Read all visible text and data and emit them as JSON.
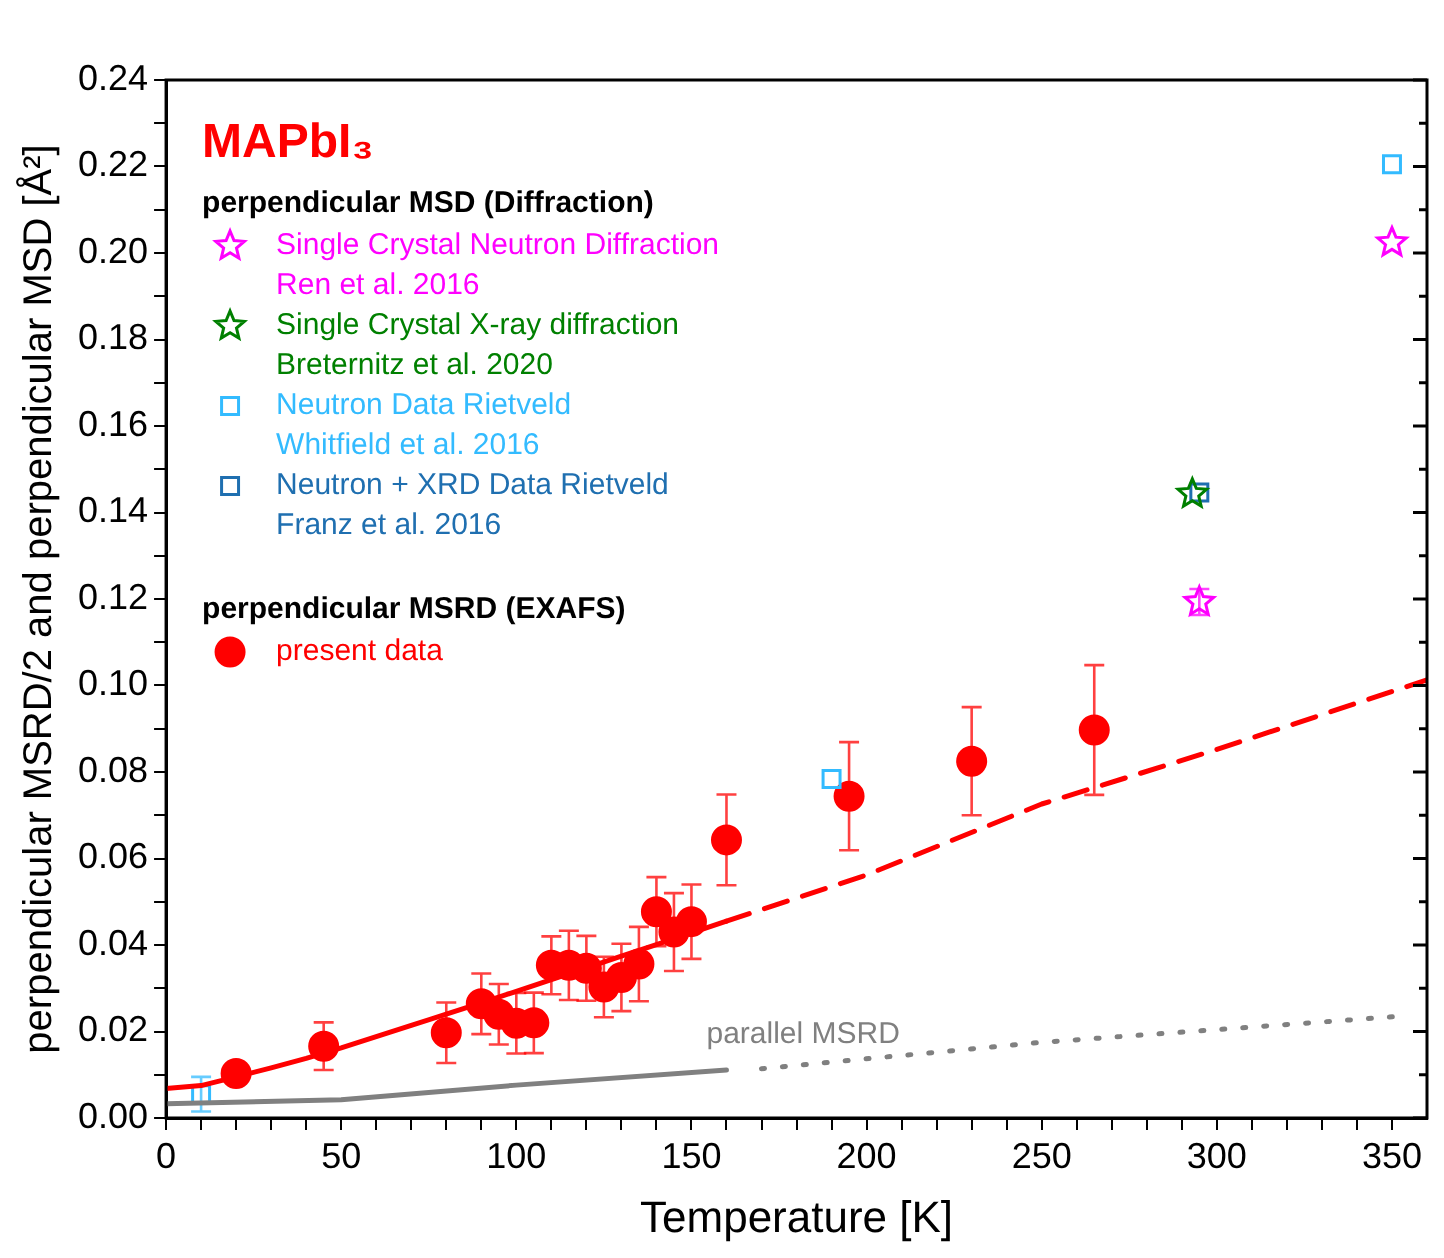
{
  "chart_data": {
    "type": "scatter",
    "title": "MAPbI₃",
    "xlabel": "Temperature [K]",
    "ylabel": "perpendicular MSRD/2 and perpendicular MSD [Å²]",
    "xlim": [
      0,
      360
    ],
    "ylim": [
      0,
      0.24
    ],
    "xticks": [
      0,
      {
        "value": 10,
        "label": null
      },
      {
        "value": 20,
        "label": null
      },
      {
        "value": 30,
        "label": null
      },
      {
        "value": 40,
        "label": null
      },
      50,
      {
        "value": 60,
        "label": null
      },
      {
        "value": 70,
        "label": null
      },
      {
        "value": 80,
        "label": null
      },
      {
        "value": 90,
        "label": null
      },
      100,
      {
        "value": 110,
        "label": null
      },
      {
        "value": 120,
        "label": null
      },
      {
        "value": 130,
        "label": null
      },
      {
        "value": 140,
        "label": null
      },
      150,
      {
        "value": 160,
        "label": null
      },
      {
        "value": 170,
        "label": null
      },
      {
        "value": 180,
        "label": null
      },
      {
        "value": 190,
        "label": null
      },
      200,
      {
        "value": 210,
        "label": null
      },
      {
        "value": 220,
        "label": null
      },
      {
        "value": 230,
        "label": null
      },
      {
        "value": 240,
        "label": null
      },
      250,
      {
        "value": 260,
        "label": null
      },
      {
        "value": 270,
        "label": null
      },
      {
        "value": 280,
        "label": null
      },
      {
        "value": 290,
        "label": null
      },
      300,
      {
        "value": 310,
        "label": null
      },
      {
        "value": 320,
        "label": null
      },
      {
        "value": 330,
        "label": null
      },
      {
        "value": 340,
        "label": null
      },
      350
    ],
    "yticks": [
      {
        "value": 0,
        "label": "0.00"
      },
      {
        "value": 0.01,
        "label": null
      },
      {
        "value": 0.02,
        "label": "0.02"
      },
      {
        "value": 0.03,
        "label": null
      },
      {
        "value": 0.04,
        "label": "0.04"
      },
      {
        "value": 0.05,
        "label": null
      },
      {
        "value": 0.06,
        "label": "0.06"
      },
      {
        "value": 0.07,
        "label": null
      },
      {
        "value": 0.08,
        "label": "0.08"
      },
      {
        "value": 0.09,
        "label": null
      },
      {
        "value": 0.1,
        "label": "0.10"
      },
      {
        "value": 0.11,
        "label": null
      },
      {
        "value": 0.12,
        "label": "0.12"
      },
      {
        "value": 0.13,
        "label": null
      },
      {
        "value": 0.14,
        "label": "0.14"
      },
      {
        "value": 0.15,
        "label": null
      },
      {
        "value": 0.16,
        "label": "0.16"
      },
      {
        "value": 0.17,
        "label": null
      },
      {
        "value": 0.18,
        "label": "0.18"
      },
      {
        "value": 0.19,
        "label": null
      },
      {
        "value": 0.2,
        "label": "0.20"
      },
      {
        "value": 0.21,
        "label": null
      },
      {
        "value": 0.22,
        "label": "0.22"
      },
      {
        "value": 0.23,
        "label": null
      },
      {
        "value": 0.24,
        "label": "0.24"
      }
    ],
    "grid": false,
    "legend": "top left",
    "annotations": [
      "perpendicular MSD (Diffraction)",
      "perpendicular MSRD (EXAFS)",
      "parallel MSRD"
    ],
    "series": [
      {
        "type": "line",
        "color": "#ff0000",
        "marker": "none",
        "line_style": "solid",
        "x": [
          0,
          10,
          20,
          30,
          40,
          50,
          60,
          70,
          80,
          90,
          100,
          110,
          120,
          130,
          140,
          150,
          160
        ],
        "values": [
          0.0068,
          0.0075,
          0.0095,
          0.0116,
          0.0138,
          0.0162,
          0.0188,
          0.0214,
          0.024,
          0.0266,
          0.0293,
          0.032,
          0.0347,
          0.0374,
          0.0401,
          0.0428,
          0.0455
        ]
      },
      {
        "type": "line",
        "color": "#ff0000",
        "marker": "none",
        "line_style": "dashed",
        "x": [
          160,
          200,
          250,
          300,
          360
        ],
        "values": [
          0.0455,
          0.0562,
          0.0726,
          0.0852,
          0.1013
        ]
      },
      {
        "type": "line",
        "color": "#808080",
        "marker": "none",
        "line_style": "solid",
        "x": [
          0,
          50,
          100,
          160
        ],
        "values": [
          0.0033,
          0.0042,
          0.0076,
          0.0111
        ]
      },
      {
        "type": "line",
        "color": "#808080",
        "marker": "none",
        "line_style": "dotted",
        "x": [
          170,
          250,
          352
        ],
        "values": [
          0.0114,
          0.0175,
          0.0235
        ]
      },
      {
        "name": "Single Crystal Neutron Diffraction\nRen et al. 2016",
        "type": "scatter",
        "color": "#ff00ff",
        "marker": "star",
        "x": [
          295,
          350
        ],
        "values": [
          0.1193,
          0.2024
        ],
        "errors": [
          0.003,
          null
        ]
      },
      {
        "name": "Single Crystal X-ray diffraction\nBreternitz et al. 2020",
        "type": "scatter",
        "color": "#008000",
        "marker": "star",
        "x": [
          293
        ],
        "values": [
          0.1443
        ]
      },
      {
        "name": "Neutron Data Rietveld\nWhitfield et al. 2016",
        "type": "scatter",
        "color": "#33bbff",
        "marker": "square",
        "x": [
          10,
          190,
          350
        ],
        "values": [
          0.0055,
          0.0784,
          0.2205
        ],
        "errors": [
          0.004,
          null,
          null
        ]
      },
      {
        "name": "Neutron + XRD Data Rietveld\nFranz et al. 2016",
        "type": "scatter",
        "color": "#1f6fb0",
        "marker": "square",
        "x": [
          295
        ],
        "values": [
          0.1446
        ]
      },
      {
        "name": "present data",
        "type": "scatter",
        "color": "#ff0000",
        "marker": "circle",
        "x": [
          20,
          45,
          80,
          90,
          95,
          100,
          105,
          110,
          115,
          120,
          125,
          130,
          135,
          140,
          145,
          150,
          160,
          195,
          230,
          265
        ],
        "values": [
          0.0103,
          0.0166,
          0.0197,
          0.0264,
          0.024,
          0.0219,
          0.022,
          0.0353,
          0.0353,
          0.0346,
          0.0303,
          0.0325,
          0.0356,
          0.0477,
          0.043,
          0.0454,
          0.0643,
          0.0744,
          0.0825,
          0.0897
        ],
        "errors": [
          null,
          0.0055,
          0.007,
          0.007,
          0.007,
          0.007,
          0.007,
          0.0067,
          0.008,
          0.0075,
          0.007,
          0.0078,
          0.0086,
          0.008,
          0.009,
          0.0086,
          0.0105,
          0.0125,
          0.0125,
          0.015
        ]
      }
    ]
  }
}
